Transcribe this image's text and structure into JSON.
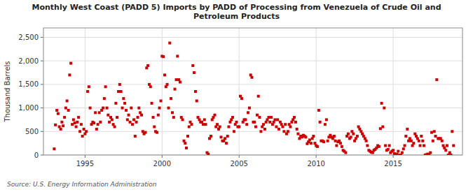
{
  "chart_data": {
    "type": "scatter",
    "title": "Monthly West Coast (PADD 5) Imports by PADD of Processing from Venezuela of Crude Oil and\nPetroleum Products",
    "ylabel": "Thousand Barrels",
    "annotations": [
      "Source: U.S. Energy Information Administration"
    ],
    "color": "#cc0000",
    "marker": "square",
    "grid": true,
    "xlim": [
      1992.3,
      2019.5
    ],
    "ylim": [
      0,
      2700
    ],
    "xticks": [
      1995,
      2000,
      2005,
      2010,
      2015
    ],
    "yticks": [
      0,
      500,
      {
        "value": 1000,
        "label": "1,000"
      },
      {
        "value": 1500,
        "label": "1,500"
      },
      {
        "value": 2000,
        "label": "2,000"
      },
      {
        "value": 2500,
        "label": "2,500"
      }
    ],
    "x": [
      1993.0,
      1993.08,
      1993.17,
      1993.25,
      1993.33,
      1993.42,
      1993.5,
      1993.58,
      1993.67,
      1993.75,
      1993.83,
      1993.92,
      1994.0,
      1994.08,
      1994.17,
      1994.25,
      1994.33,
      1994.42,
      1994.5,
      1994.58,
      1994.67,
      1994.75,
      1994.83,
      1994.92,
      1995.0,
      1995.08,
      1995.17,
      1995.25,
      1995.33,
      1995.42,
      1995.5,
      1995.58,
      1995.67,
      1995.75,
      1995.83,
      1995.92,
      1996.0,
      1996.08,
      1996.17,
      1996.25,
      1996.33,
      1996.42,
      1996.5,
      1996.58,
      1996.67,
      1996.75,
      1996.83,
      1996.92,
      1997.0,
      1997.08,
      1997.17,
      1997.25,
      1997.33,
      1997.42,
      1997.5,
      1997.58,
      1997.67,
      1997.75,
      1997.83,
      1997.92,
      1998.0,
      1998.08,
      1998.17,
      1998.25,
      1998.33,
      1998.42,
      1998.5,
      1998.58,
      1998.67,
      1998.75,
      1998.83,
      1998.92,
      1999.0,
      1999.08,
      1999.17,
      1999.25,
      1999.33,
      1999.42,
      1999.5,
      1999.58,
      1999.67,
      1999.75,
      1999.83,
      1999.92,
      2000.0,
      2000.08,
      2000.17,
      2000.25,
      2000.33,
      2000.42,
      2000.5,
      2000.58,
      2000.67,
      2000.75,
      2000.83,
      2000.92,
      2001.0,
      2001.08,
      2001.17,
      2001.25,
      2001.33,
      2001.42,
      2001.5,
      2001.58,
      2001.67,
      2001.75,
      2001.83,
      2001.92,
      2002.0,
      2002.08,
      2002.17,
      2002.25,
      2002.33,
      2002.42,
      2002.5,
      2002.58,
      2002.67,
      2002.75,
      2002.83,
      2002.92,
      2003.0,
      2003.08,
      2003.17,
      2003.25,
      2003.33,
      2003.42,
      2003.5,
      2003.58,
      2003.67,
      2003.75,
      2003.83,
      2003.92,
      2004.0,
      2004.08,
      2004.17,
      2004.25,
      2004.33,
      2004.42,
      2004.5,
      2004.58,
      2004.67,
      2004.75,
      2004.83,
      2004.92,
      2005.0,
      2005.08,
      2005.17,
      2005.25,
      2005.33,
      2005.42,
      2005.5,
      2005.58,
      2005.67,
      2005.75,
      2005.83,
      2005.92,
      2006.0,
      2006.08,
      2006.17,
      2006.25,
      2006.33,
      2006.42,
      2006.5,
      2006.58,
      2006.67,
      2006.75,
      2006.83,
      2006.92,
      2007.0,
      2007.08,
      2007.17,
      2007.25,
      2007.33,
      2007.42,
      2007.5,
      2007.58,
      2007.67,
      2007.75,
      2007.83,
      2007.92,
      2008.0,
      2008.08,
      2008.17,
      2008.25,
      2008.33,
      2008.42,
      2008.5,
      2008.58,
      2008.67,
      2008.75,
      2008.83,
      2008.92,
      2009.0,
      2009.08,
      2009.17,
      2009.25,
      2009.33,
      2009.42,
      2009.5,
      2009.58,
      2009.67,
      2009.75,
      2009.83,
      2009.92,
      2010.0,
      2010.08,
      2010.17,
      2010.25,
      2010.33,
      2010.42,
      2010.5,
      2010.58,
      2010.67,
      2010.75,
      2010.83,
      2010.92,
      2011.0,
      2011.08,
      2011.17,
      2011.25,
      2011.33,
      2011.42,
      2011.5,
      2011.58,
      2011.67,
      2011.75,
      2011.83,
      2011.92,
      2012.0,
      2012.08,
      2012.17,
      2012.25,
      2012.33,
      2012.42,
      2012.5,
      2012.58,
      2012.67,
      2012.75,
      2012.83,
      2012.92,
      2013.0,
      2013.08,
      2013.17,
      2013.25,
      2013.33,
      2013.42,
      2013.5,
      2013.58,
      2013.67,
      2013.75,
      2013.83,
      2013.92,
      2014.0,
      2014.08,
      2014.17,
      2014.25,
      2014.33,
      2014.42,
      2014.5,
      2014.58,
      2014.67,
      2014.75,
      2014.83,
      2014.92,
      2015.0,
      2015.08,
      2015.17,
      2015.25,
      2015.33,
      2015.42,
      2015.5,
      2015.58,
      2015.67,
      2015.75,
      2015.83,
      2015.92,
      2016.0,
      2016.08,
      2016.17,
      2016.25,
      2016.33,
      2016.42,
      2016.5,
      2016.58,
      2016.67,
      2016.75,
      2016.83,
      2016.92,
      2017.0,
      2017.08,
      2017.17,
      2017.25,
      2017.33,
      2017.42,
      2017.5,
      2017.58,
      2017.67,
      2017.75,
      2017.83,
      2017.92,
      2018.0,
      2018.08,
      2018.17,
      2018.25,
      2018.33,
      2018.42,
      2018.5,
      2018.58,
      2018.67,
      2018.75,
      2018.83,
      2018.92
    ],
    "values": [
      130,
      640,
      950,
      880,
      600,
      550,
      700,
      620,
      800,
      1000,
      1150,
      950,
      1700,
      1950,
      650,
      750,
      680,
      600,
      700,
      800,
      500,
      650,
      400,
      550,
      450,
      500,
      1350,
      1450,
      1000,
      650,
      700,
      680,
      900,
      550,
      650,
      900,
      700,
      950,
      1000,
      1200,
      1450,
      1000,
      850,
      700,
      800,
      750,
      650,
      600,
      1100,
      800,
      1350,
      1500,
      1350,
      1000,
      1200,
      1100,
      950,
      750,
      850,
      700,
      1000,
      650,
      750,
      400,
      700,
      800,
      1000,
      900,
      850,
      500,
      450,
      480,
      1850,
      1900,
      1500,
      1450,
      1100,
      800,
      600,
      500,
      480,
      850,
      1000,
      1150,
      2100,
      2090,
      1700,
      1450,
      1500,
      1000,
      2380,
      1200,
      900,
      800,
      1400,
      1600,
      2100,
      1600,
      1550,
      800,
      750,
      300,
      250,
      150,
      400,
      600,
      700,
      650,
      1900,
      1750,
      1350,
      1150,
      800,
      750,
      700,
      700,
      650,
      750,
      650,
      50,
      20,
      350,
      400,
      750,
      800,
      850,
      600,
      650,
      550,
      600,
      380,
      300,
      300,
      350,
      250,
      400,
      600,
      700,
      750,
      800,
      500,
      650,
      700,
      600,
      600,
      1250,
      1200,
      700,
      750,
      750,
      650,
      900,
      1000,
      1700,
      1650,
      700,
      700,
      600,
      850,
      1250,
      800,
      500,
      600,
      650,
      550,
      700,
      750,
      800,
      700,
      800,
      650,
      700,
      750,
      600,
      750,
      550,
      700,
      650,
      600,
      500,
      650,
      450,
      500,
      650,
      600,
      700,
      750,
      800,
      700,
      550,
      450,
      350,
      400,
      380,
      420,
      400,
      380,
      240,
      280,
      320,
      250,
      350,
      400,
      250,
      200,
      180,
      950,
      700,
      300,
      300,
      280,
      650,
      750,
      300,
      380,
      420,
      380,
      350,
      400,
      300,
      200,
      280,
      300,
      250,
      180,
      100,
      80,
      50,
      400,
      450,
      350,
      380,
      500,
      450,
      300,
      350,
      400,
      600,
      550,
      500,
      450,
      400,
      350,
      300,
      200,
      100,
      80,
      60,
      50,
      100,
      120,
      150,
      200,
      180,
      560,
      1100,
      600,
      1000,
      200,
      100,
      120,
      200,
      50,
      80,
      100,
      30,
      10,
      20,
      80,
      0,
      0,
      50,
      130,
      200,
      400,
      550,
      300,
      350,
      300,
      200,
      250,
      450,
      400,
      350,
      300,
      200,
      400,
      300,
      200,
      0,
      10,
      20,
      0,
      50,
      480,
      300,
      500,
      400,
      1600,
      350,
      350,
      350,
      300,
      200,
      150,
      100,
      200,
      0,
      50,
      0,
      500,
      200
    ]
  }
}
